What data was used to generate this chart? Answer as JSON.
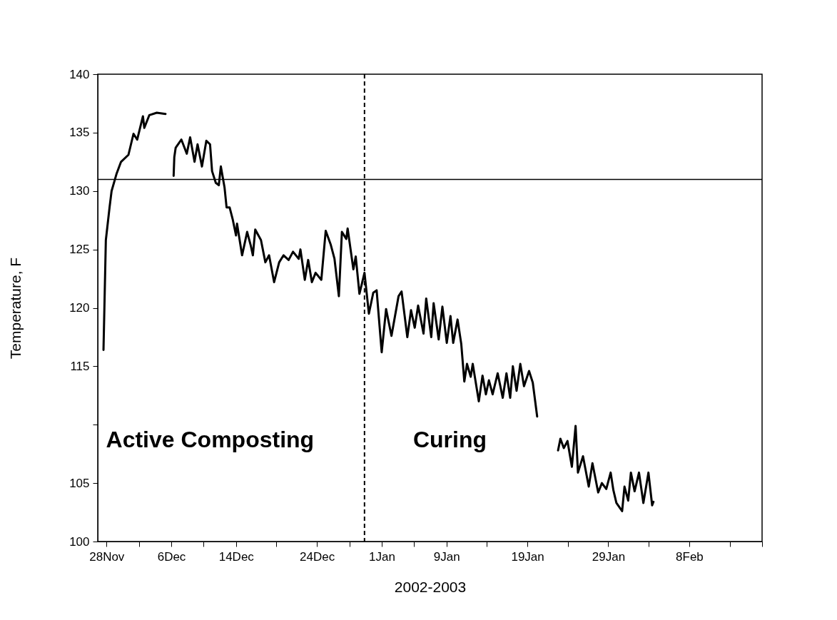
{
  "chart_data": {
    "type": "line",
    "xlabel": "2002-2003",
    "ylabel": "Temperature, F",
    "xlim": [
      "2002-11-26T22:00",
      "2003-02-17"
    ],
    "ylim": [
      100,
      140
    ],
    "xticks": [
      {
        "value": "2002-11-28",
        "label": "28Nov"
      },
      {
        "value": "2002-12-02",
        "label": null
      },
      {
        "value": "2002-12-06",
        "label": "6Dec"
      },
      {
        "value": "2002-12-10",
        "label": null
      },
      {
        "value": "2002-12-14",
        "label": "14Dec"
      },
      {
        "value": "2002-12-19",
        "label": null
      },
      {
        "value": "2002-12-24",
        "label": "24Dec"
      },
      {
        "value": "2002-12-28",
        "label": null
      },
      {
        "value": "2003-01-01",
        "label": "1Jan"
      },
      {
        "value": "2003-01-05",
        "label": null
      },
      {
        "value": "2003-01-09",
        "label": "9Jan"
      },
      {
        "value": "2003-01-14",
        "label": null
      },
      {
        "value": "2003-01-19",
        "label": "19Jan"
      },
      {
        "value": "2003-01-24",
        "label": null
      },
      {
        "value": "2003-01-29",
        "label": "29Jan"
      },
      {
        "value": "2003-02-03",
        "label": null
      },
      {
        "value": "2003-02-08",
        "label": "8Feb"
      },
      {
        "value": "2003-02-13",
        "label": null
      },
      {
        "value": "2003-02-17",
        "label": null
      }
    ],
    "yticks": [
      100,
      105,
      {
        "value": 110,
        "label": null
      },
      115,
      120,
      125,
      130,
      135,
      140
    ],
    "series": [
      {
        "color": "#000000",
        "x": [
          "2002-11-27T15:00",
          "2002-11-27T22:00",
          "2002-11-28T09:00",
          "2002-11-28T15:00",
          "2002-11-29T06:00",
          "2002-11-29T19:00",
          "2002-11-30T17:00",
          "2002-12-01T08:00",
          "2002-12-01T19:00",
          "2002-12-02T12:00",
          "2002-12-02T16:00",
          "2002-12-03T07:00",
          "2002-12-04T05:00",
          "2002-12-05T07:00",
          "2002-12-05T18:00",
          "2002-12-06T07:00",
          "2002-12-06T09:00",
          "2002-12-06T13:00",
          "2002-12-07T06:00",
          "2002-12-07T22:00",
          "2002-12-08T08:00",
          "2002-12-08T21:00",
          "2002-12-09T06:00",
          "2002-12-09T19:00",
          "2002-12-10T08:00",
          "2002-12-10T19:00",
          "2002-12-11T01:00",
          "2002-12-11T12:00",
          "2002-12-11T21:00",
          "2002-12-12T03:00",
          "2002-12-12T14:00",
          "2002-12-12T20:00",
          "2002-12-13T05:00",
          "2002-12-13T14:00",
          "2002-12-14T00:00",
          "2002-12-14T03:00",
          "2002-12-14T18:00",
          "2002-12-15T09:00",
          "2002-12-15T20:00",
          "2002-12-16T02:00",
          "2002-12-16T09:00",
          "2002-12-17T02:00",
          "2002-12-17T15:00",
          "2002-12-18T02:00",
          "2002-12-18T17:00",
          "2002-12-19T08:00",
          "2002-12-19T21:00",
          "2002-12-20T12:00",
          "2002-12-21T01:00",
          "2002-12-21T18:00",
          "2002-12-21T23:00",
          "2002-12-22T12:00",
          "2002-12-22T22:00",
          "2002-12-23T09:00",
          "2002-12-23T20:00",
          "2002-12-24T13:00",
          "2002-12-25T02:00",
          "2002-12-25T17:00",
          "2002-12-26T04:00",
          "2002-12-26T17:00",
          "2002-12-27T02:00",
          "2002-12-27T15:00",
          "2002-12-27T19:00",
          "2002-12-28T12:00",
          "2002-12-28T19:00",
          "2002-12-29T06:00",
          "2002-12-29T21:00",
          "2002-12-30T10:00",
          "2002-12-30T23:00",
          "2002-12-31T09:00",
          "2003-01-01T00:00",
          "2003-01-01T13:00",
          "2003-01-02T05:00",
          "2003-01-03T02:00",
          "2003-01-03T11:00",
          "2003-01-04T04:00",
          "2003-01-04T15:00",
          "2003-01-05T02:00",
          "2003-01-05T12:00",
          "2003-01-06T04:00",
          "2003-01-06T12:00",
          "2003-01-07T03:00",
          "2003-01-07T10:00",
          "2003-01-08T01:00",
          "2003-01-08T12:00",
          "2003-01-09T01:00",
          "2003-01-09T12:00",
          "2003-01-09T20:00",
          "2003-01-10T09:00",
          "2003-01-10T20:00",
          "2003-01-11T05:00",
          "2003-01-11T13:00",
          "2003-01-12T00:00",
          "2003-01-12T06:00",
          "2003-01-13T00:00",
          "2003-01-13T11:00",
          "2003-01-13T21:00",
          "2003-01-14T06:00",
          "2003-01-14T17:00",
          "2003-01-15T08:00",
          "2003-01-15T23:00",
          "2003-01-16T10:00",
          "2003-01-16T21:00",
          "2003-01-17T05:00",
          "2003-01-17T16:00",
          "2003-01-18T03:00",
          "2003-01-18T14:00",
          "2003-01-19T05:00",
          "2003-01-19T16:00",
          "2003-01-20T05:00",
          "2003-01-21T11:00",
          "2003-01-22T19:00",
          "2003-01-23T02:00",
          "2003-01-23T12:00",
          "2003-01-23T23:00",
          "2003-01-24T12:00",
          "2003-01-24T23:00",
          "2003-01-25T06:00",
          "2003-01-25T21:00",
          "2003-01-26T14:00",
          "2003-01-27T01:00",
          "2003-01-27T18:00",
          "2003-01-28T05:00",
          "2003-01-28T18:00",
          "2003-01-29T07:00",
          "2003-01-29T15:00",
          "2003-01-30T00:00",
          "2003-01-30T17:00",
          "2003-01-31T00:00",
          "2003-01-31T11:00",
          "2003-01-31T19:00",
          "2003-02-01T06:00",
          "2003-02-01T19:00",
          "2003-02-02T08:00",
          "2003-02-02T23:00",
          "2003-02-03T10:00",
          "2003-02-03T14:00"
        ],
        "values": [
          116.4,
          125.8,
          128.6,
          130.0,
          131.5,
          132.5,
          133.1,
          134.9,
          134.4,
          136.4,
          135.4,
          136.5,
          136.7,
          136.6,
          null,
          131.3,
          132.9,
          133.7,
          134.4,
          133.2,
          134.6,
          132.5,
          134.0,
          132.1,
          134.3,
          134.0,
          131.7,
          130.7,
          130.5,
          132.1,
          130.3,
          128.6,
          128.6,
          127.6,
          126.2,
          127.2,
          124.5,
          126.5,
          125.3,
          124.5,
          126.7,
          125.8,
          123.9,
          124.5,
          122.2,
          123.9,
          124.5,
          124.1,
          124.8,
          124.2,
          125.0,
          122.4,
          124.1,
          122.2,
          123.0,
          122.4,
          126.6,
          125.4,
          124.2,
          121.0,
          126.5,
          125.9,
          126.8,
          123.3,
          124.4,
          121.2,
          123.0,
          119.5,
          121.3,
          121.5,
          116.2,
          119.9,
          117.6,
          121.0,
          121.4,
          117.5,
          119.8,
          118.3,
          120.2,
          117.8,
          120.8,
          117.5,
          120.4,
          117.3,
          120.1,
          117.0,
          119.3,
          117.0,
          119.0,
          116.9,
          113.7,
          115.2,
          114.1,
          115.2,
          112.0,
          114.2,
          112.6,
          113.8,
          112.6,
          114.4,
          112.3,
          114.4,
          112.3,
          115.0,
          112.9,
          115.2,
          113.3,
          114.6,
          113.6,
          110.7,
          null,
          107.8,
          108.8,
          108.0,
          108.6,
          106.4,
          109.9,
          105.9,
          107.3,
          104.7,
          106.7,
          104.2,
          105.0,
          104.5,
          105.9,
          104.4,
          103.3,
          102.6,
          104.7,
          103.5,
          105.9,
          104.3,
          105.9,
          103.3,
          105.9,
          103.1,
          103.4
        ]
      }
    ],
    "ref_lines": [
      {
        "axis": "y",
        "value": 131,
        "line_style": "solid"
      },
      {
        "axis": "x",
        "value": "2002-12-29T21:00",
        "line_style": "dashed"
      }
    ],
    "annotations": [
      "Active Composting",
      "Curing"
    ]
  }
}
